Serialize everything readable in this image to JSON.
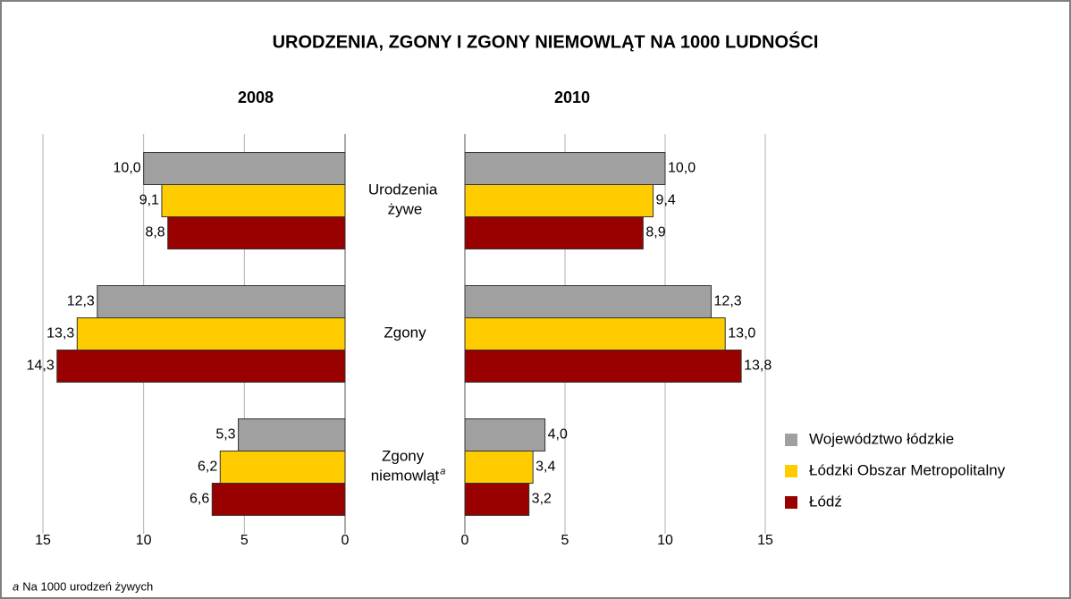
{
  "chart_data": {
    "type": "bar",
    "orientation": "horizontal",
    "title": "URODZENIA, ZGONY I ZGONY NIEMOWLĄT NA 1000 LUDNOŚCI",
    "categories": [
      "Urodzenia żywe",
      "Zgony",
      "Zgony niemowląt"
    ],
    "footnote": {
      "marker": "a",
      "category": 2,
      "text": "Na 1000 urodzeń żywych"
    },
    "series": [
      {
        "name": "Województwo łódzkie",
        "color": "#a0a0a0"
      },
      {
        "name": "Łódzki Obszar Metropolitalny",
        "color": "#ffcc00"
      },
      {
        "name": "Łódź",
        "color": "#990000"
      }
    ],
    "panels": [
      {
        "title": "2008",
        "xlim": [
          15,
          0
        ],
        "xticks": [
          15,
          10,
          5,
          0
        ],
        "series": [
          {
            "values": [
              10.0,
              12.3,
              5.3
            ],
            "value_labels": [
              "10,0",
              "12,3",
              "5,3"
            ]
          },
          {
            "values": [
              9.1,
              13.3,
              6.2
            ],
            "value_labels": [
              "9,1",
              "13,3",
              "6,2"
            ]
          },
          {
            "values": [
              8.8,
              14.3,
              6.6
            ],
            "value_labels": [
              "8,8",
              "14,3",
              "6,6"
            ]
          }
        ]
      },
      {
        "title": "2010",
        "xlim": [
          0,
          15
        ],
        "xticks": [
          0,
          5,
          10,
          15
        ],
        "series": [
          {
            "values": [
              10.0,
              12.3,
              4.0
            ],
            "value_labels": [
              "10,0",
              "12,3",
              "4,0"
            ]
          },
          {
            "values": [
              9.4,
              13.0,
              3.4
            ],
            "value_labels": [
              "9,4",
              "13,0",
              "3,4"
            ]
          },
          {
            "values": [
              8.9,
              13.8,
              3.2
            ],
            "value_labels": [
              "8,9",
              "13,8",
              "3,2"
            ]
          }
        ]
      }
    ]
  }
}
